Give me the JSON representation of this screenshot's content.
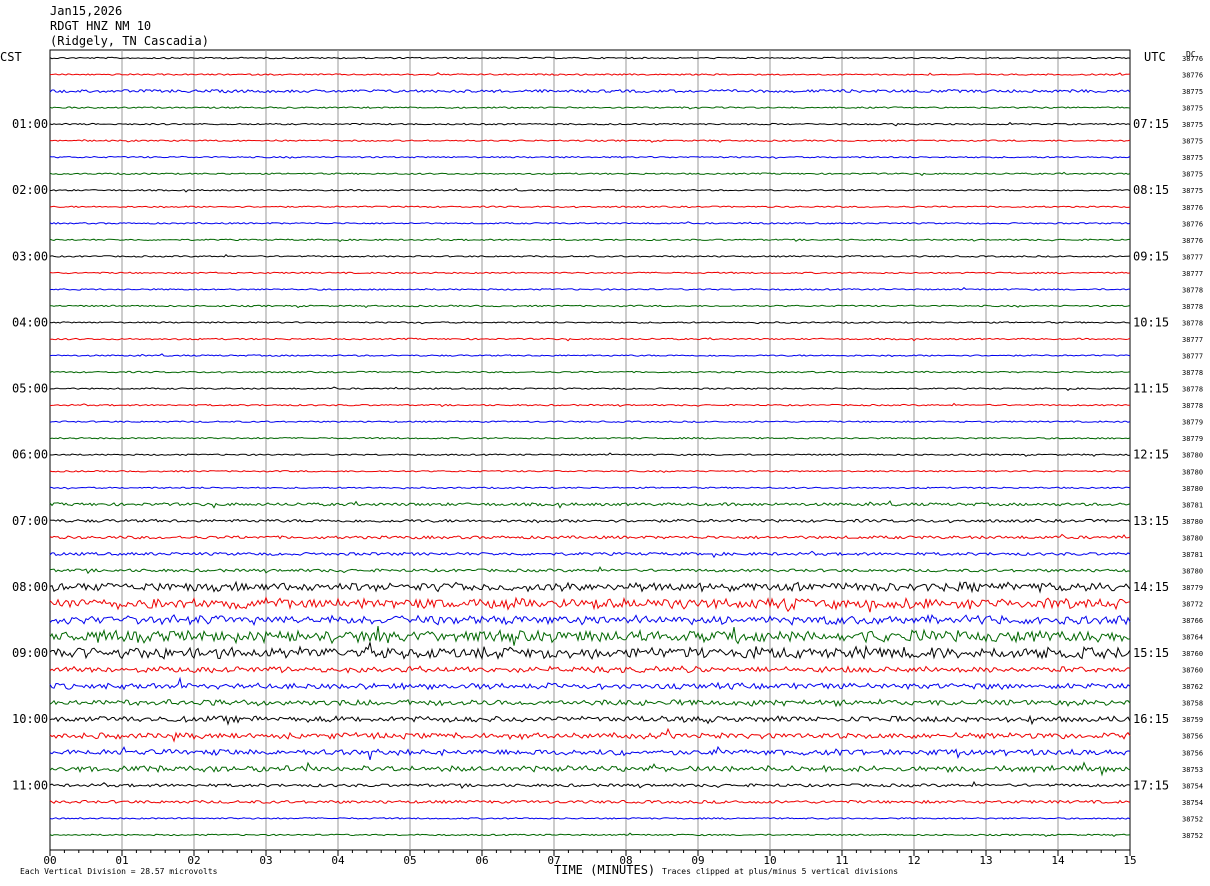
{
  "header": {
    "date": "Jan15,2026",
    "station": "RDGT HNZ NM 10",
    "location": "(Ridgely, TN Cascadia)"
  },
  "labels": {
    "left_tz": "CST",
    "right_tz": "UTC",
    "dc": "DC"
  },
  "footer": {
    "scale_label": "Each Vertical Division =   28.57 microvolts",
    "clip_note": "Traces clipped at plus/minus 5 vertical divisions"
  },
  "chart_data": {
    "type": "line",
    "title": "Jan15,2026 RDGT HNZ NM 10 (Ridgely, TN Cascadia)",
    "xlabel": "TIME (MINUTES)",
    "ylabel": "",
    "xlim": [
      0,
      15
    ],
    "x_ticks": [
      "00",
      "01",
      "02",
      "03",
      "04",
      "05",
      "06",
      "07",
      "08",
      "09",
      "10",
      "11",
      "12",
      "13",
      "14",
      "15"
    ],
    "left_hour_labels": [
      "01:00",
      "02:00",
      "03:00",
      "04:00",
      "05:00",
      "06:00",
      "07:00",
      "08:00",
      "09:00",
      "10:00",
      "11:00"
    ],
    "right_hour_labels": [
      "07:15",
      "08:15",
      "09:15",
      "10:15",
      "11:15",
      "12:15",
      "13:15",
      "14:15",
      "15:15",
      "16:15",
      "17:15"
    ],
    "trace_colors": [
      "#000000",
      "#ee0000",
      "#0000ee",
      "#006600"
    ],
    "grid": true,
    "dc_offsets": [
      "38776",
      "38776",
      "38775",
      "38775",
      "38775",
      "38775",
      "38775",
      "38775",
      "38775",
      "38776",
      "38776",
      "38776",
      "38777",
      "38777",
      "38778",
      "38778",
      "38778",
      "38777",
      "38777",
      "38778",
      "38778",
      "38778",
      "38779",
      "38779",
      "38780",
      "38780",
      "38780",
      "38781",
      "38780",
      "38780",
      "38781",
      "38780",
      "38779",
      "38772",
      "38766",
      "38764",
      "38760",
      "38760",
      "38762",
      "38758",
      "38759",
      "38756",
      "38756",
      "38753",
      "38754",
      "38754",
      "38752",
      "38752"
    ],
    "trace_amplitude": [
      1,
      1,
      2,
      1,
      1,
      1,
      1,
      1,
      1,
      1,
      1,
      1,
      1,
      1,
      1,
      1,
      1,
      1,
      1,
      1,
      1,
      1,
      1,
      1,
      1,
      1,
      1,
      2,
      2,
      2,
      2,
      2,
      6,
      7,
      6,
      8,
      8,
      4,
      4,
      4,
      4,
      4,
      4,
      4,
      2,
      2,
      1,
      1
    ]
  }
}
